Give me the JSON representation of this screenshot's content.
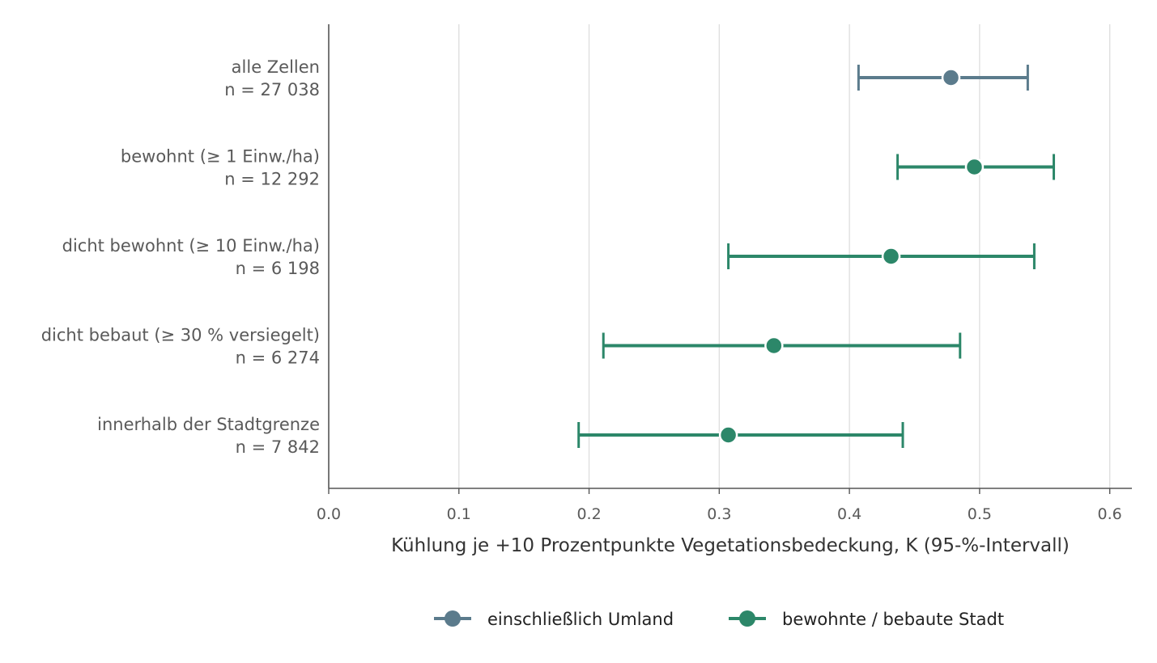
{
  "chart_data": {
    "type": "errorbar",
    "title": "",
    "xlabel": "Kühlung je +10 Prozentpunkte Vegetationsbedeckung, K (95-%-Intervall)",
    "ylabel": "",
    "xlim": [
      0.0,
      0.617
    ],
    "xticks": [
      0.0,
      0.1,
      0.2,
      0.3,
      0.4,
      0.5,
      0.6
    ],
    "xtick_labels": [
      "0.0",
      "0.1",
      "0.2",
      "0.3",
      "0.4",
      "0.5",
      "0.6"
    ],
    "grid": "vertical",
    "legend_position": "bottom",
    "series": [
      {
        "name": "einschließlich Umland",
        "color": "#5b7b8c"
      },
      {
        "name": "bewohnte / bebaute Stadt",
        "color": "#2c8769"
      }
    ],
    "rows": [
      {
        "label": "alle Zellen",
        "n": "n = 27 038",
        "series": 0,
        "estimate": 0.478,
        "lower": 0.407,
        "upper": 0.537
      },
      {
        "label": "bewohnt (≥ 1 Einw./ha)",
        "n": "n = 12 292",
        "series": 1,
        "estimate": 0.496,
        "lower": 0.437,
        "upper": 0.557
      },
      {
        "label": "dicht bewohnt (≥ 10 Einw./ha)",
        "n": "n = 6 198",
        "series": 1,
        "estimate": 0.432,
        "lower": 0.307,
        "upper": 0.542
      },
      {
        "label": "dicht bebaut (≥ 30 % versiegelt)",
        "n": "n = 6 274",
        "series": 1,
        "estimate": 0.342,
        "lower": 0.211,
        "upper": 0.485
      },
      {
        "label": "innerhalb der Stadtgrenze",
        "n": "n = 7 842",
        "series": 1,
        "estimate": 0.307,
        "lower": 0.192,
        "upper": 0.441
      }
    ]
  }
}
